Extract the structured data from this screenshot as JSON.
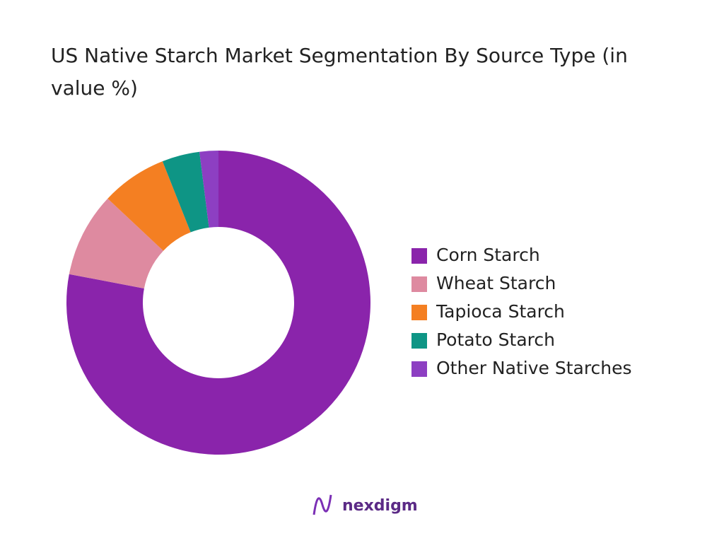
{
  "chart_data": {
    "type": "donut",
    "title": "US Native Starch Market Segmentation By Source Type (in value %)",
    "categories": [
      "Corn Starch",
      "Wheat Starch",
      "Tapioca Starch",
      "Potato Starch",
      "Other Native Starches"
    ],
    "values": [
      78,
      9,
      7,
      4,
      2
    ],
    "colors": [
      "#8a24ab",
      "#de8aa0",
      "#f47f22",
      "#0e9585",
      "#8d3fc2"
    ],
    "legend": "right"
  },
  "logo": "nexdigm"
}
